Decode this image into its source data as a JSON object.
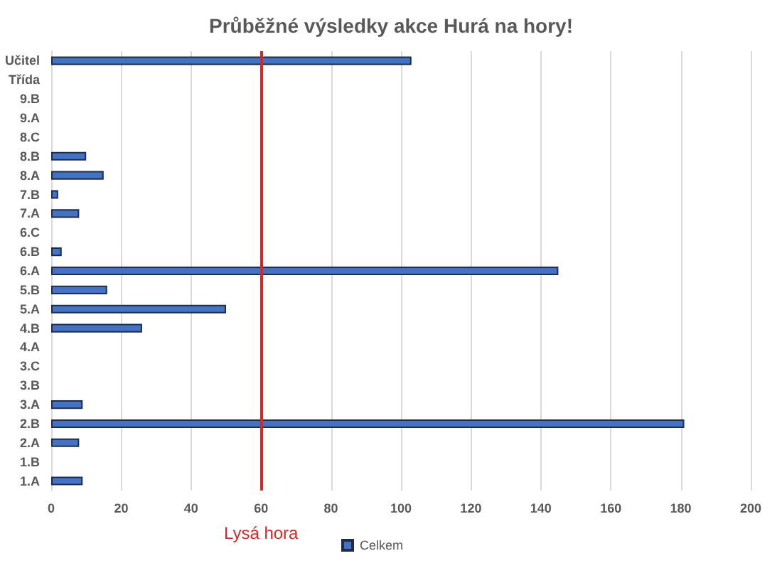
{
  "chart_data": {
    "type": "bar",
    "orientation": "horizontal",
    "title": "Průběžné výsledky akce Hurá na hory!",
    "categories": [
      "Učitel",
      "Třída",
      "9.B",
      "9.A",
      "8.C",
      "8.B",
      "8.A",
      "7.B",
      "7.A",
      "6.C",
      "6.B",
      "6.A",
      "5.B",
      "5.A",
      "4.B",
      "4.A",
      "3.C",
      "3.B",
      "3.A",
      "2.B",
      "2.A",
      "1.B",
      "1.A"
    ],
    "series": [
      {
        "name": "Celkem",
        "color": "#4472c4",
        "values": [
          103,
          null,
          null,
          null,
          null,
          10,
          15,
          2,
          8,
          null,
          3,
          145,
          16,
          50,
          26,
          null,
          null,
          null,
          9,
          181,
          8,
          null,
          9
        ]
      }
    ],
    "xlim": [
      0,
      200
    ],
    "xticks": [
      0,
      20,
      40,
      60,
      80,
      100,
      120,
      140,
      160,
      180,
      200
    ],
    "ref_lines": [
      {
        "axis": "x",
        "value": 60,
        "label": "Lysá hora",
        "color": "#d02b2b"
      }
    ],
    "grid": "x",
    "legend": "bottom"
  }
}
